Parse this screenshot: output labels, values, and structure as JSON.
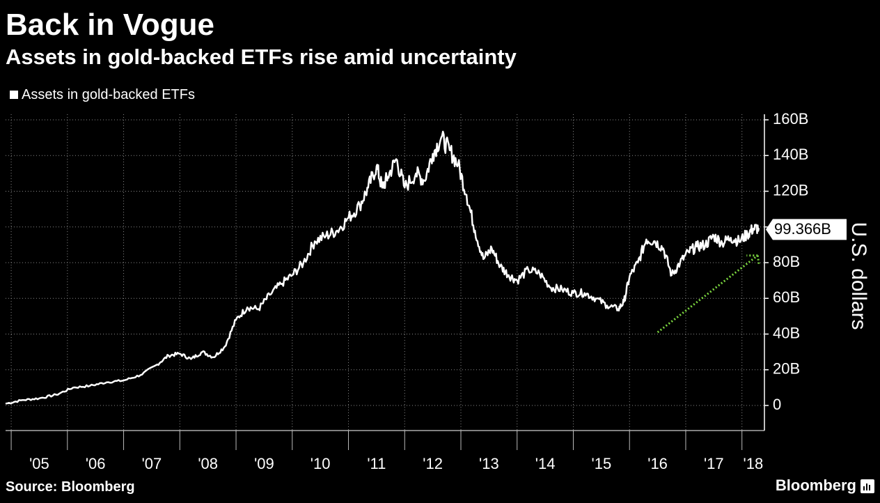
{
  "header": {
    "title": "Back in Vogue",
    "subtitle": "Assets in gold-backed ETFs rise amid uncertainty"
  },
  "footer": {
    "source": "Source: Bloomberg",
    "brand": "Bloomberg"
  },
  "colors": {
    "background": "#000000",
    "line": "#ffffff",
    "grid": "#8a8a8a",
    "arrow": "#7bd53f"
  },
  "chart_data": {
    "type": "line",
    "legend": "Assets in gold-backed ETFs",
    "legend_position": "top-left",
    "ylabel": "U.S. dollars",
    "ylim": [
      0,
      160
    ],
    "y_ticks": [
      0,
      20,
      40,
      60,
      80,
      100,
      120,
      140,
      160
    ],
    "y_tick_labels": [
      "0",
      "20B",
      "40B",
      "60B",
      "80B",
      "100B",
      "120B",
      "140B",
      "160B"
    ],
    "xlim": [
      2004.9,
      2018.4
    ],
    "x_ticks": [
      2005,
      2006,
      2007,
      2008,
      2009,
      2010,
      2011,
      2012,
      2013,
      2014,
      2015,
      2016,
      2017,
      2018
    ],
    "x_tick_labels": [
      "'05",
      "'06",
      "'07",
      "'08",
      "'09",
      "'10",
      "'11",
      "'12",
      "'13",
      "'14",
      "'15",
      "'16",
      "'17",
      "'18"
    ],
    "grid": true,
    "last_value_label": "99.366B",
    "annotation": "green dotted upward arrow from 2016.5 (~41B) to 2018.3 (~85B)",
    "series": [
      {
        "name": "Assets in gold-backed ETFs",
        "x": [
          2004.9,
          2005.2,
          2005.5,
          2005.8,
          2006.1,
          2006.4,
          2006.7,
          2007.0,
          2007.3,
          2007.6,
          2007.8,
          2008.0,
          2008.2,
          2008.4,
          2008.6,
          2008.8,
          2009.0,
          2009.2,
          2009.4,
          2009.6,
          2009.8,
          2010.0,
          2010.2,
          2010.4,
          2010.6,
          2010.8,
          2011.0,
          2011.2,
          2011.35,
          2011.5,
          2011.6,
          2011.7,
          2011.85,
          2012.0,
          2012.2,
          2012.35,
          2012.5,
          2012.65,
          2012.8,
          2012.95,
          2013.1,
          2013.25,
          2013.4,
          2013.55,
          2013.7,
          2013.85,
          2014.0,
          2014.2,
          2014.4,
          2014.6,
          2014.8,
          2015.0,
          2015.2,
          2015.4,
          2015.6,
          2015.8,
          2015.9,
          2016.0,
          2016.15,
          2016.3,
          2016.45,
          2016.6,
          2016.75,
          2016.9,
          2017.05,
          2017.2,
          2017.35,
          2017.5,
          2017.65,
          2017.8,
          2017.95,
          2018.1,
          2018.2,
          2018.3
        ],
        "values": [
          1,
          3,
          4,
          6,
          10,
          11,
          13,
          14,
          17,
          23,
          28,
          29,
          26,
          30,
          27,
          33,
          48,
          55,
          54,
          62,
          68,
          73,
          80,
          92,
          95,
          98,
          105,
          112,
          122,
          134,
          122,
          128,
          138,
          122,
          130,
          126,
          141,
          150,
          143,
          135,
          118,
          98,
          82,
          88,
          78,
          73,
          70,
          76,
          74,
          66,
          65,
          63,
          63,
          60,
          56,
          54,
          58,
          72,
          80,
          93,
          92,
          88,
          73,
          80,
          86,
          89,
          90,
          95,
          91,
          94,
          92,
          96,
          99,
          99.366
        ]
      }
    ]
  }
}
